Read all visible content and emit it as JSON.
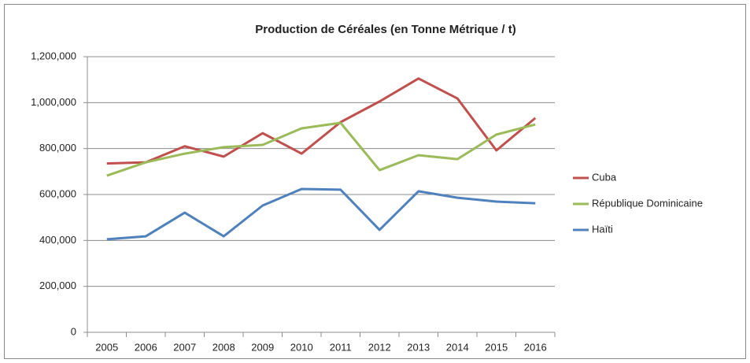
{
  "chart_data": {
    "type": "line",
    "title": "Production de Céréales (en Tonne Métrique / t)",
    "categories": [
      "2005",
      "2006",
      "2007",
      "2008",
      "2009",
      "2010",
      "2011",
      "2012",
      "2013",
      "2014",
      "2015",
      "2016"
    ],
    "series": [
      {
        "name": "Cuba",
        "color": "#c0504d",
        "values": [
          735000,
          740000,
          810000,
          765000,
          867000,
          778000,
          915000,
          1005000,
          1105000,
          1018000,
          792000,
          933000
        ]
      },
      {
        "name": "République Dominicaine",
        "color": "#9bbb59",
        "values": [
          682000,
          740000,
          778000,
          806000,
          816000,
          888000,
          912000,
          706000,
          771000,
          754000,
          861000,
          905000
        ]
      },
      {
        "name": "Haïti",
        "color": "#4f81bd",
        "values": [
          405000,
          418000,
          521000,
          418000,
          552000,
          624000,
          621000,
          446000,
          614000,
          586000,
          569000,
          562000
        ]
      }
    ],
    "ylim": [
      0,
      1200000
    ],
    "yticks": [
      0,
      {
        "value": 200000,
        "label": "200,000"
      },
      {
        "value": 400000,
        "label": "400,000"
      },
      {
        "value": 600000,
        "label": "600,000"
      },
      {
        "value": 800000,
        "label": "800,000"
      },
      {
        "value": 1000000,
        "label": "1,000,000"
      },
      {
        "value": 1200000,
        "label": "1,200,000"
      }
    ],
    "grid": true,
    "legend": "right"
  }
}
